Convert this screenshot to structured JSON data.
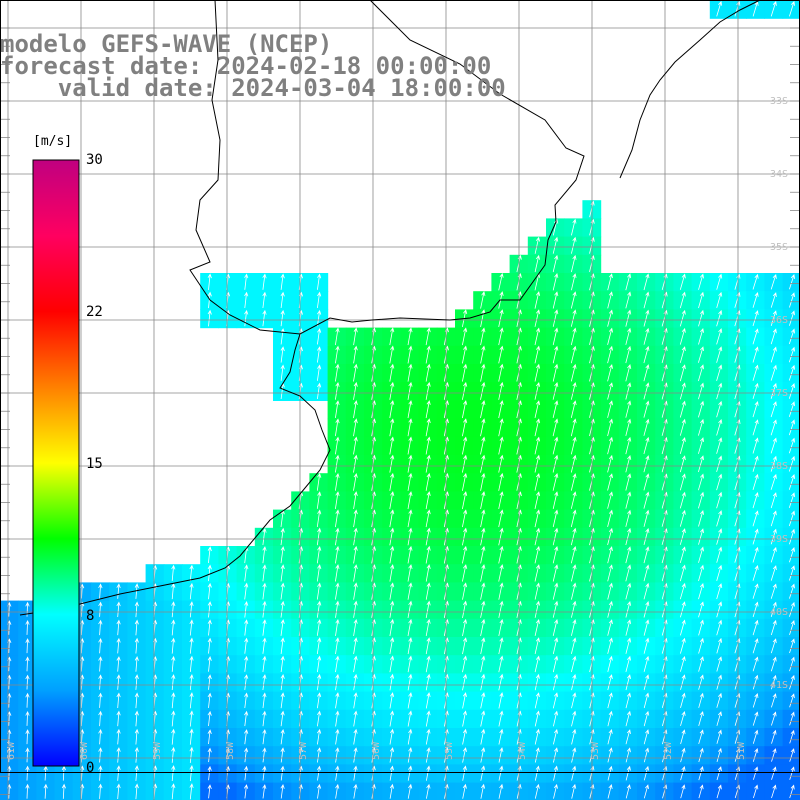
{
  "title": {
    "line1": "modelo GEFS-WAVE (NCEP)",
    "line2": "forecast date: 2024-02-18 00:00:00",
    "line3": "    valid date: 2024-03-04 18:00:00"
  },
  "colorbar": {
    "unit": "[m/s]",
    "min": 0,
    "max": 30,
    "tick_labels": [
      "30",
      "22",
      "15",
      "8",
      "0"
    ],
    "tick_values": [
      30,
      22,
      15,
      8,
      0
    ],
    "colors": [
      "#0000ff",
      "#00a0ff",
      "#00ffff",
      "#00ff00",
      "#ffff00",
      "#ff8000",
      "#ff0000",
      "#ff0060",
      "#c00080"
    ]
  },
  "map": {
    "variable": "wind speed",
    "lat_labels": [
      "33S",
      "34S",
      "35S",
      "36S",
      "37S",
      "38S",
      "39S",
      "40S",
      "41S"
    ],
    "lon_labels": [
      "61W",
      "60W",
      "59W",
      "58W",
      "57W",
      "56W",
      "55W",
      "54W",
      "53W",
      "52W",
      "51W"
    ],
    "wind_direction": "from south-southwest",
    "speed_range_ms": [
      3,
      11
    ]
  }
}
